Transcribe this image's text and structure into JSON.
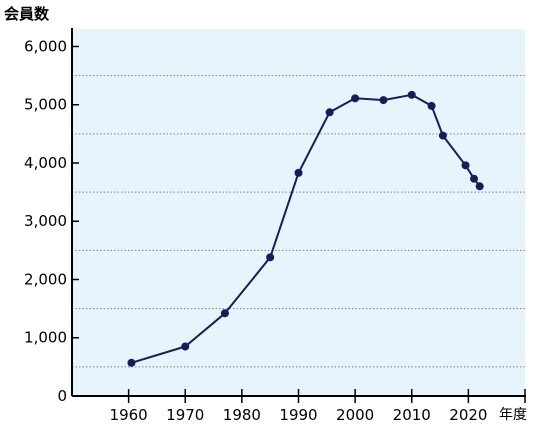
{
  "chart_data": {
    "type": "line",
    "ylabel": "会員数",
    "xlabel": "年度",
    "xlim": [
      1950,
      2030
    ],
    "ylim": [
      0,
      6300
    ],
    "x_ticks": [
      1960,
      1970,
      1980,
      1990,
      2000,
      2010,
      2020
    ],
    "x_tick_labels": [
      "1960",
      "1970",
      "1980",
      "1990",
      "2000",
      "2010",
      "2020"
    ],
    "y_ticks": [
      0,
      1000,
      2000,
      3000,
      4000,
      5000,
      6000
    ],
    "y_tick_labels": [
      "0",
      "1,000",
      "2,000",
      "3,000",
      "4,000",
      "5,000",
      "6,000"
    ],
    "gridlines": true,
    "series": [
      {
        "x": [
          1960.5,
          1970,
          1977,
          1985,
          1990,
          1995.5,
          2000,
          2005,
          2010,
          2013.5,
          2015.5,
          2019.5,
          2021,
          2022
        ],
        "values": [
          570,
          850,
          1420,
          2380,
          3830,
          4870,
          5110,
          5080,
          5170,
          4980,
          4470,
          3960,
          3730,
          3600
        ]
      }
    ],
    "colors": {
      "plot_background": "#e8f4fc",
      "line": "#1c1a5a",
      "marker": "#1c1a5a",
      "grid": "#808080",
      "axis": "#000000"
    }
  }
}
